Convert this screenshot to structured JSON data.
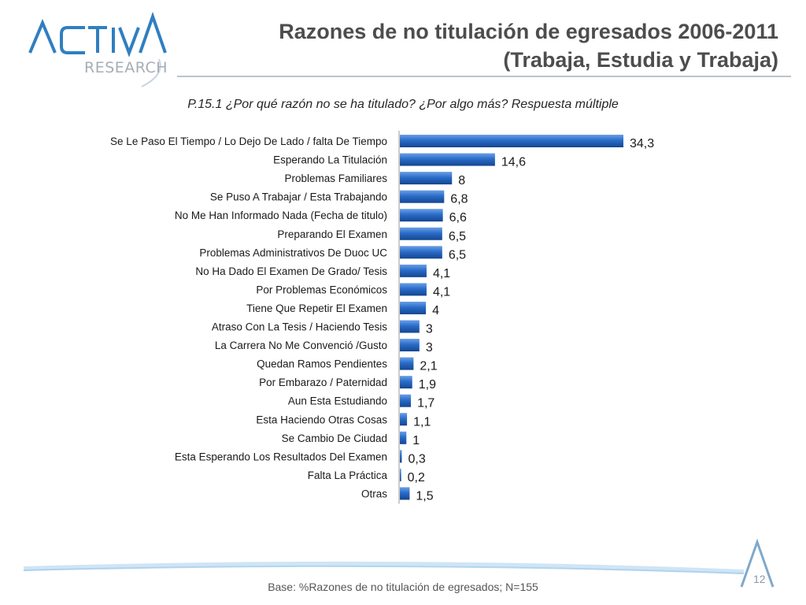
{
  "header": {
    "logo_text": "ACTIVA",
    "logo_sub": "RESEARCH",
    "title_line1": "Razones de no titulación de egresados 2006-2011",
    "title_line2": "(Trabaja, Estudia y Trabaja)"
  },
  "subtitle": "P.15.1 ¿Por qué razón no se ha titulado? ¿Por algo más? Respuesta múltiple",
  "footer": {
    "base_text": "Base: %Razones de no titulación de egresados; N=155",
    "page_number": "12"
  },
  "colors": {
    "bar": "#1f5fbd",
    "bar_light": "#4f8ae0",
    "title": "#4d4d4d",
    "brand": "#2f7fc1"
  },
  "chart_data": {
    "type": "bar",
    "orientation": "horizontal",
    "categories": [
      "Se Le Paso El Tiempo / Lo Dejo De Lado / falta De Tiempo",
      "Esperando La Titulación",
      "Problemas Familiares",
      "Se Puso A Trabajar / Esta Trabajando",
      "No Me Han Informado Nada  (Fecha de titulo)",
      "Preparando El Examen",
      "Problemas Administrativos De Duoc UC",
      "No Ha Dado El Examen De Grado/ Tesis",
      "Por Problemas Económicos",
      "Tiene Que Repetir El Examen",
      "Atraso Con La Tesis / Haciendo Tesis",
      "La Carrera No Me Convenció /Gusto",
      "Quedan Ramos Pendientes",
      "Por Embarazo / Paternidad",
      "Aun Esta Estudiando",
      "Esta Haciendo Otras Cosas",
      "Se Cambio De Ciudad",
      "Esta Esperando Los Resultados Del Examen",
      "Falta La Práctica",
      "Otras"
    ],
    "values": [
      34.3,
      14.6,
      8,
      6.8,
      6.6,
      6.5,
      6.5,
      4.1,
      4.1,
      4,
      3,
      3,
      2.1,
      1.9,
      1.7,
      1.1,
      1,
      0.3,
      0.2,
      1.5
    ],
    "value_labels": [
      "34,3",
      "14,6",
      "8",
      "6,8",
      "6,6",
      "6,5",
      "6,5",
      "4,1",
      "4,1",
      "4",
      "3",
      "3",
      "2,1",
      "1,9",
      "1,7",
      "1,1",
      "1",
      "0,3",
      "0,2",
      "1,5"
    ],
    "xlim": [
      0,
      35
    ],
    "grid": false,
    "legend": "none"
  }
}
